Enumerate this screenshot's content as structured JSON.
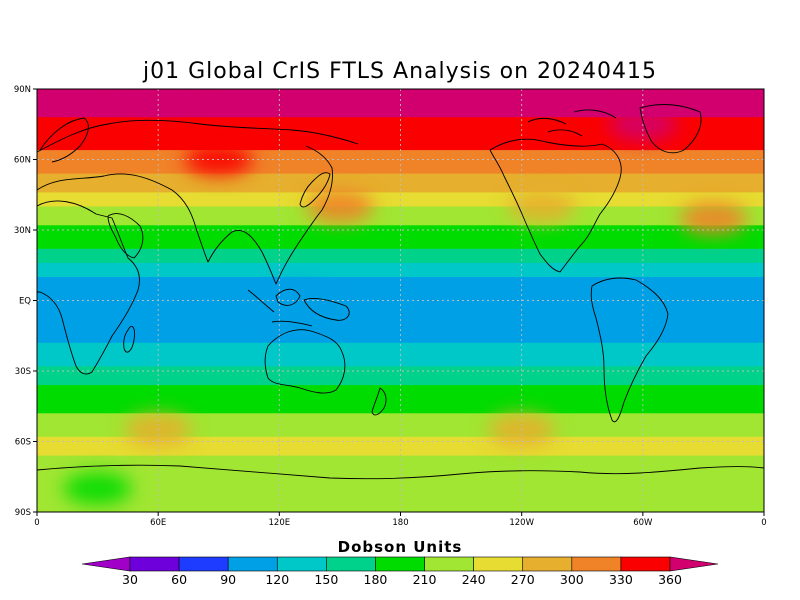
{
  "map": {
    "title": "j01 Global CrIS FTLS Analysis on 20240415",
    "lat_labels": [
      "90N",
      "60N",
      "30N",
      "EQ",
      "30S",
      "60S",
      "90S"
    ],
    "lon_labels": [
      "0",
      "60E",
      "120E",
      "180",
      "120W",
      "60W",
      "0"
    ],
    "colorbar": {
      "title": "Dobson Units",
      "levels": [
        "30",
        "60",
        "90",
        "120",
        "150",
        "180",
        "210",
        "240",
        "270",
        "300",
        "330",
        "360"
      ],
      "colors": [
        "#a000c8",
        "#6e00dc",
        "#1e3cff",
        "#00a0e6",
        "#00c8c8",
        "#00d28c",
        "#00dc00",
        "#a0e632",
        "#e6dc32",
        "#e6af2d",
        "#f08228",
        "#fa0000",
        "#d2006e"
      ]
    }
  },
  "chart_data": {
    "type": "heatmap",
    "title": "j01 Global CrIS FTLS Analysis on 20240415",
    "variable_units": "Dobson Units",
    "projection": "cylindrical equidistant",
    "lon_range": [
      0,
      360
    ],
    "lat_range": [
      -90,
      90
    ],
    "lat_ticks": [
      "90N",
      "60N",
      "30N",
      "EQ",
      "30S",
      "60S",
      "90S"
    ],
    "lon_ticks": [
      "0",
      "60E",
      "120E",
      "180",
      "120W",
      "60W",
      "0"
    ],
    "levels": [
      30,
      60,
      90,
      120,
      150,
      180,
      210,
      240,
      270,
      300,
      330,
      360
    ],
    "zonal_profile": {
      "lat": [
        90,
        80,
        70,
        60,
        50,
        40,
        30,
        20,
        10,
        0,
        -10,
        -20,
        -30,
        -40,
        -50,
        -60,
        -70,
        -80,
        -90
      ],
      "value": [
        370,
        365,
        345,
        320,
        285,
        240,
        205,
        175,
        120,
        95,
        95,
        125,
        160,
        195,
        215,
        245,
        235,
        225,
        230
      ]
    },
    "features": [
      {
        "lat": 88,
        "lon": 60,
        "value": 370
      },
      {
        "lat": 75,
        "lon": 300,
        "value": 360
      },
      {
        "lat": 60,
        "lon": 90,
        "value": 345
      },
      {
        "lat": 40,
        "lon": 150,
        "value": 300
      },
      {
        "lat": 35,
        "lon": 335,
        "value": 310
      },
      {
        "lat": 40,
        "lon": 250,
        "value": 295
      },
      {
        "lat": -55,
        "lon": 60,
        "value": 280
      },
      {
        "lat": -55,
        "lon": 240,
        "value": 280
      },
      {
        "lat": -80,
        "lon": 30,
        "value": 205
      },
      {
        "lat": 0,
        "lon": 130,
        "value": 90
      }
    ]
  }
}
